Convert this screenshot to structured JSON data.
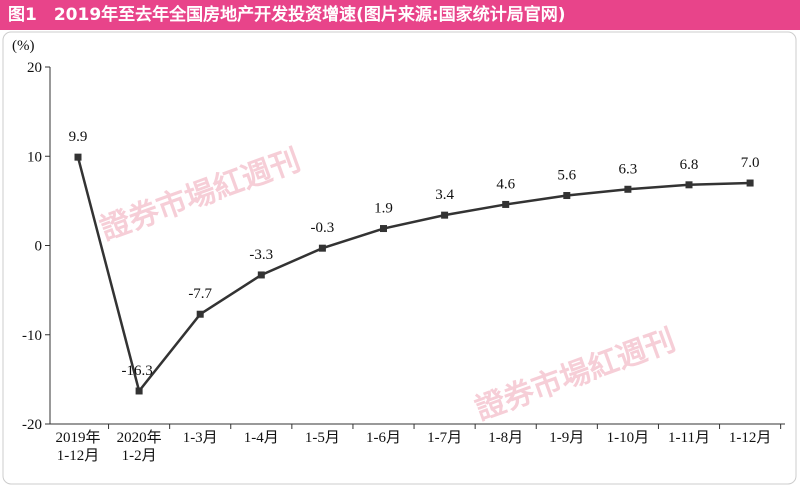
{
  "chart_data": {
    "type": "line",
    "title": "图1　2019年至去年全国房地产开发投资增速(图片来源:国家统计局官网)",
    "y_label": "(%)",
    "watermark": "證券市場紅週刊",
    "categories": [
      "2019年\n1-12月",
      "2020年\n1-2月",
      "1-3月",
      "1-4月",
      "1-5月",
      "1-6月",
      "1-7月",
      "1-8月",
      "1-9月",
      "1-10月",
      "1-11月",
      "1-12月"
    ],
    "values": [
      9.9,
      -16.3,
      -7.7,
      -3.3,
      -0.3,
      1.9,
      3.4,
      4.6,
      5.6,
      6.3,
      6.8,
      7.0
    ],
    "value_labels": [
      "9.9",
      "-16.3",
      "-7.7",
      "-3.3",
      "-0.3",
      "1.9",
      "3.4",
      "4.6",
      "5.6",
      "6.3",
      "6.8",
      "7.0"
    ],
    "color": "#333333",
    "ylim": [
      -20,
      20
    ],
    "yticks": [
      20,
      10,
      0,
      -10,
      -20
    ]
  }
}
